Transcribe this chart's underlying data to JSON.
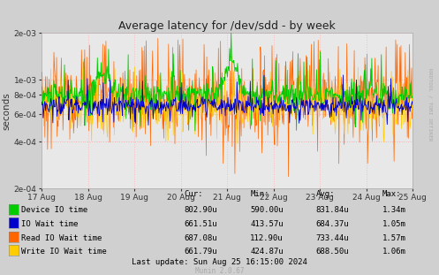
{
  "title": "Average latency for /dev/sdd - by week",
  "ylabel": "seconds",
  "xlabel_ticks": [
    "17 Aug",
    "18 Aug",
    "19 Aug",
    "20 Aug",
    "21 Aug",
    "22 Aug",
    "23 Aug",
    "24 Aug",
    "25 Aug"
  ],
  "ytick_labels": [
    "2e-04",
    "4e-04",
    "6e-04",
    "8e-04",
    "1e-03",
    "2e-03"
  ],
  "ytick_vals": [
    0.0002,
    0.0004,
    0.0006,
    0.0008,
    0.001,
    0.002
  ],
  "ymin": 0.0002,
  "ymax": 0.002,
  "outer_bg": "#d0d0d0",
  "plot_bg_color": "#e8e8e8",
  "grid_color_h": "#ff9999",
  "grid_color_v": "#ddbbbb",
  "series": {
    "device_io": {
      "color": "#00cc00",
      "label": "Device IO time",
      "cur": "802.90u",
      "min": "590.00u",
      "avg": "831.84u",
      "max": "1.34m"
    },
    "io_wait": {
      "color": "#0000cc",
      "label": "IO Wait time",
      "cur": "661.51u",
      "min": "413.57u",
      "avg": "684.37u",
      "max": "1.05m"
    },
    "read_io": {
      "color": "#ff6600",
      "label": "Read IO Wait time",
      "cur": "687.08u",
      "min": "112.90u",
      "avg": "733.44u",
      "max": "1.57m"
    },
    "write_io": {
      "color": "#ffcc00",
      "label": "Write IO Wait time",
      "cur": "661.79u",
      "min": "424.87u",
      "avg": "688.50u",
      "max": "1.06m"
    }
  },
  "last_update": "Last update: Sun Aug 25 16:15:00 2024",
  "rrdtool_label": "RRDTOOL / TOBI OETIKER",
  "munin_label": "Munin 2.0.67",
  "legend_header": [
    "Cur:",
    "Min:",
    "Avg:",
    "Max:"
  ]
}
